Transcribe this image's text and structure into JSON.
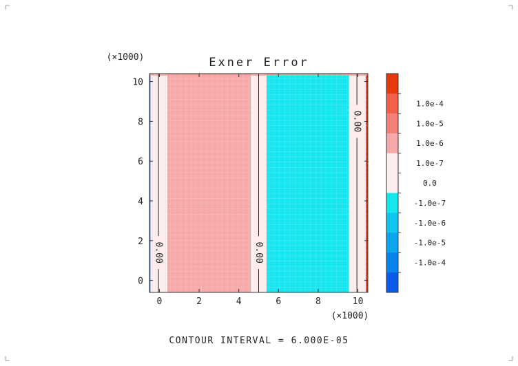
{
  "chart_data": {
    "type": "heatmap",
    "title": "Exner Error",
    "x_scale_label": "(×1000)",
    "y_scale_label": "(×1000)",
    "xlim": [
      -0.5,
      10.5
    ],
    "ylim": [
      -0.6,
      10.4
    ],
    "x_ticks": [
      0,
      2,
      4,
      6,
      8,
      10
    ],
    "y_ticks": [
      0,
      2,
      4,
      6,
      8,
      10
    ],
    "x_tick_labels": [
      "0",
      "2",
      "4",
      "6",
      "8",
      "10"
    ],
    "y_tick_labels": [
      "0",
      "2",
      "4",
      "6",
      "8",
      "10"
    ],
    "bands": [
      {
        "x0": -0.5,
        "x1": -0.45,
        "color": "#1f64e6"
      },
      {
        "x0": -0.45,
        "x1": 0.4,
        "color": "#fdecec"
      },
      {
        "x0": 0.4,
        "x1": 4.6,
        "color": "#f7a8a8"
      },
      {
        "x0": 4.6,
        "x1": 5.4,
        "color": "#fdecec"
      },
      {
        "x0": 5.4,
        "x1": 9.55,
        "color": "#16e6f0"
      },
      {
        "x0": 9.55,
        "x1": 10.4,
        "color": "#fdecec"
      },
      {
        "x0": 10.4,
        "x1": 10.5,
        "color": "#e8431a"
      }
    ],
    "contours": [
      {
        "x": -0.05,
        "label": "0.00",
        "label_y": 1.4
      },
      {
        "x": 5.0,
        "label": "0.00",
        "label_y": 1.4
      },
      {
        "x": 9.95,
        "label": "0.00",
        "label_y": 8.0
      }
    ],
    "colorbar": {
      "levels": [
        {
          "label": "",
          "color": "#e8380f"
        },
        {
          "label": "1.0e-4",
          "color": "#f2604a"
        },
        {
          "label": "1.0e-5",
          "color": "#f47f77"
        },
        {
          "label": "1.0e-6",
          "color": "#f7a8a8"
        },
        {
          "label": "1.0e-7",
          "color": "#fdecec"
        },
        {
          "label": "0.0",
          "color": "#fdecec"
        },
        {
          "label": "-1.0e-7",
          "color": "#16e6f0"
        },
        {
          "label": "-1.0e-6",
          "color": "#10c6f0"
        },
        {
          "label": "-1.0e-5",
          "color": "#0ba6ee"
        },
        {
          "label": "-1.0e-4",
          "color": "#0784ea"
        },
        {
          "label": "",
          "color": "#0a5ce8"
        }
      ]
    },
    "footer": "CONTOUR INTERVAL = 6.000E-05"
  }
}
